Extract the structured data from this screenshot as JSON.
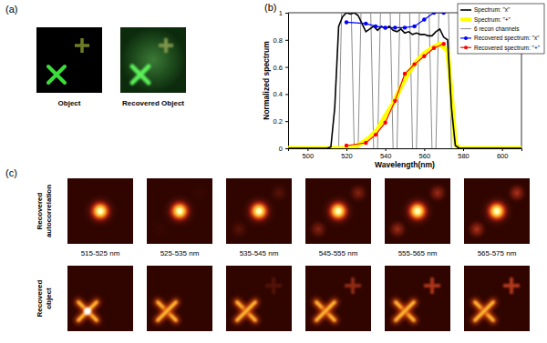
{
  "chart_data": {
    "type": "line",
    "x_label": "Wavelength(nm)",
    "y_label": "Normalized spectrum",
    "xlim": [
      490,
      610
    ],
    "xticks": [
      500,
      520,
      540,
      560,
      580,
      600
    ],
    "ylim": [
      0,
      1
    ],
    "yticks": [
      0,
      0.2,
      0.4,
      0.6,
      0.8,
      1
    ],
    "grid": false,
    "legend": "top-right",
    "series": [
      {
        "name": "Spectrum: \"x\"",
        "color": "#000000",
        "line_style": "solid",
        "x": [
          490,
          510,
          512,
          514,
          516,
          518,
          520,
          522,
          524,
          526,
          528,
          530,
          532,
          534,
          536,
          538,
          540,
          542,
          544,
          546,
          548,
          550,
          552,
          554,
          556,
          558,
          560,
          562,
          564,
          566,
          568,
          570,
          572,
          574,
          576,
          578,
          610
        ],
        "values": [
          0,
          0,
          0.01,
          0.3,
          0.9,
          0.97,
          1.0,
          0.99,
          1.0,
          0.98,
          0.92,
          0.86,
          0.88,
          0.9,
          0.87,
          0.9,
          0.88,
          0.9,
          0.87,
          0.86,
          0.88,
          0.85,
          0.86,
          0.84,
          0.85,
          0.84,
          0.84,
          0.83,
          0.83,
          0.86,
          0.88,
          0.82,
          0.8,
          0.3,
          0.02,
          0,
          0
        ]
      },
      {
        "name": "Spectrum: \"+\"",
        "color": "#ffff00",
        "line_style": "solid",
        "x": [
          490,
          520,
          524,
          528,
          532,
          536,
          540,
          544,
          548,
          552,
          556,
          560,
          564,
          568,
          572,
          574,
          576,
          578,
          610
        ],
        "values": [
          0,
          0,
          0.01,
          0.04,
          0.08,
          0.14,
          0.24,
          0.33,
          0.45,
          0.56,
          0.64,
          0.7,
          0.74,
          0.77,
          0.72,
          0.4,
          0.03,
          0,
          0
        ]
      },
      {
        "name": "6 recon channels",
        "color": "#8c8c8c",
        "line_style": "solid",
        "segments": [
          {
            "x": [
              516,
              517.5,
              522.5,
              524
            ],
            "values": [
              0,
              1,
              1,
              0
            ]
          },
          {
            "x": [
              526,
              527.5,
              532.5,
              534
            ],
            "values": [
              0,
              1,
              1,
              0
            ]
          },
          {
            "x": [
              536,
              537.5,
              542.5,
              544
            ],
            "values": [
              0,
              1,
              1,
              0
            ]
          },
          {
            "x": [
              546,
              547.5,
              552.5,
              554
            ],
            "values": [
              0,
              1,
              1,
              0
            ]
          },
          {
            "x": [
              556,
              557.5,
              562.5,
              564
            ],
            "values": [
              0,
              1,
              1,
              0
            ]
          },
          {
            "x": [
              566,
              567.5,
              572.5,
              574
            ],
            "values": [
              0,
              1,
              1,
              0
            ]
          }
        ]
      },
      {
        "name": "Recovered spectrum: \"x\"",
        "color": "#0000ff",
        "line_style": "solid",
        "marker": "circle",
        "x": [
          520,
          530,
          535,
          540,
          545,
          550,
          555,
          560,
          565,
          570
        ],
        "values": [
          0.93,
          0.92,
          0.9,
          0.89,
          0.89,
          0.89,
          0.9,
          0.95,
          1.0,
          1.0
        ]
      },
      {
        "name": "Recovered spectrum: \"+\"",
        "color": "#ff0000",
        "line_style": "solid",
        "marker": "circle",
        "x": [
          520,
          530,
          535,
          540,
          545,
          550,
          555,
          560,
          565,
          570
        ],
        "values": [
          0.02,
          0.04,
          0.1,
          0.19,
          0.35,
          0.55,
          0.62,
          0.68,
          0.74,
          0.77
        ]
      }
    ]
  },
  "figure": {
    "panel_labels": [
      "(a)",
      "(b)",
      "(c)"
    ],
    "panel_a": {
      "captions": [
        "Object",
        "Recovered Object"
      ]
    },
    "panel_c": {
      "row_labels": [
        [
          "Recovered",
          "autocorrelation"
        ],
        [
          "Recovered",
          "object"
        ]
      ],
      "band_labels": [
        "515-525 nm",
        "525-535 nm",
        "535-545 nm",
        "545-555 nm",
        "555-565 nm",
        "565-575 nm"
      ]
    }
  }
}
